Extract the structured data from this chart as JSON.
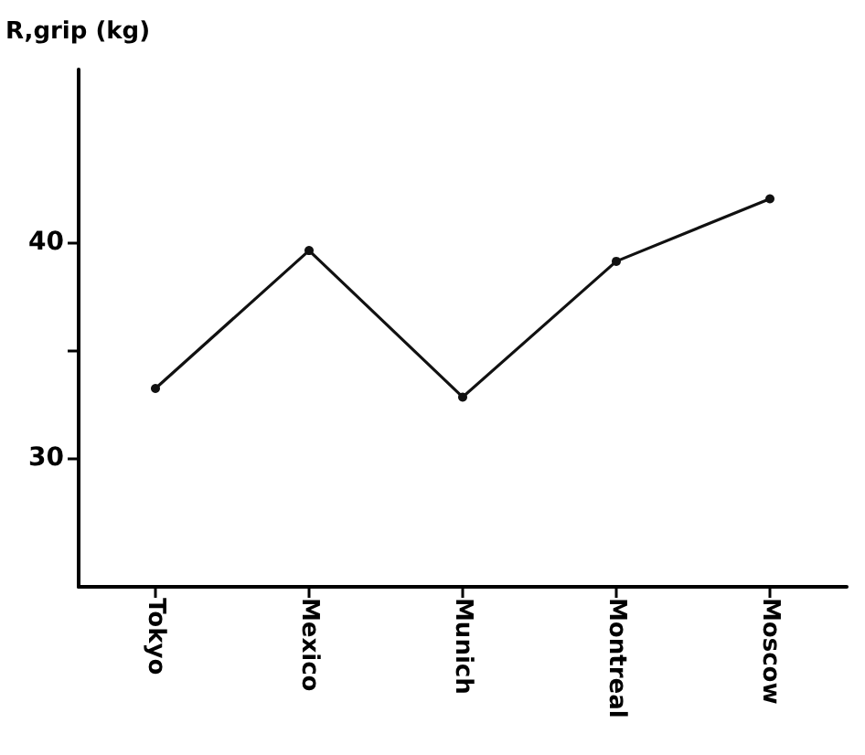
{
  "chart_data": {
    "type": "line",
    "ylabel": "R,grip (kg)",
    "categories": [
      "Tokyo",
      "Mexico",
      "Munich",
      "Montreal",
      "Moscow"
    ],
    "series": [
      {
        "color": "#111111",
        "values": [
          33.2,
          39.6,
          32.8,
          39.1,
          42.0
        ]
      }
    ],
    "ylim": [
      24,
      48
    ],
    "yticks": [
      30,
      {
        "value": 35,
        "label": null
      },
      40
    ],
    "marker": "circle",
    "line_style": "solid"
  }
}
